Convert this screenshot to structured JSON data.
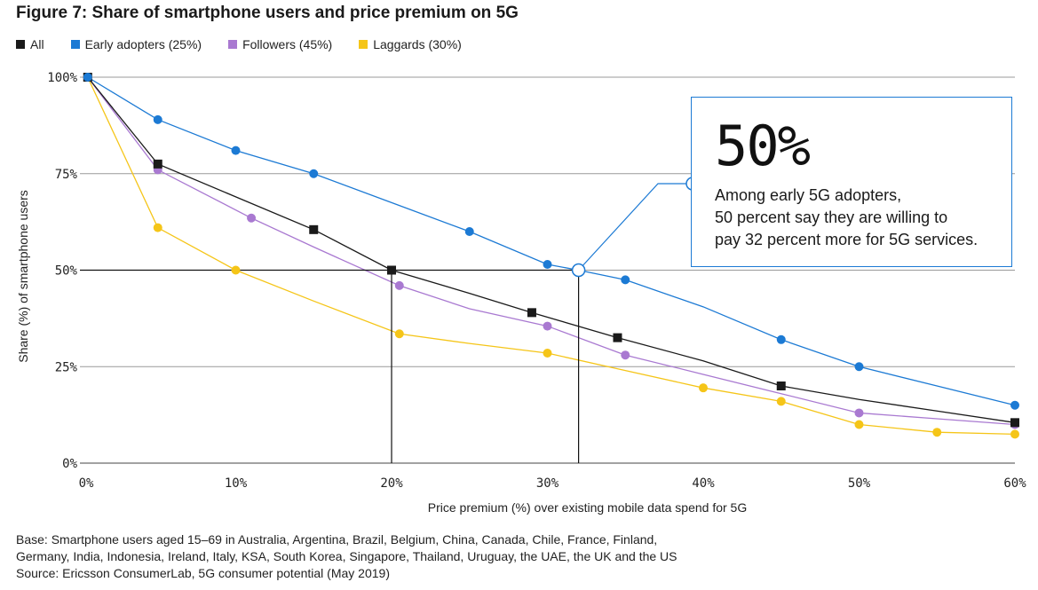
{
  "title": "Figure 7: Share of smartphone users and price premium on 5G",
  "legend": [
    {
      "label": "All",
      "color": "#1a1a1a"
    },
    {
      "label": "Early adopters (25%)",
      "color": "#1c7ad4"
    },
    {
      "label": "Followers (45%)",
      "color": "#a979d1"
    },
    {
      "label": "Laggards (30%)",
      "color": "#f5c518"
    }
  ],
  "callout": {
    "big": "50%",
    "line1": "Among early 5G adopters,",
    "line2": "50 percent say they are willing to",
    "line3": "pay 32 percent more for 5G services."
  },
  "footnote": {
    "line1": "Base: Smartphone users aged 15–69 in Australia, Argentina, Brazil, Belgium, China, Canada, Chile, France, Finland,",
    "line2": "Germany, India, Indonesia, Ireland, Italy, KSA, South Korea, Singapore, Thailand, Uruguay, the UAE, the UK and the US",
    "line3": "Source: Ericsson ConsumerLab, 5G consumer potential (May 2019)"
  },
  "chart_data": {
    "type": "line",
    "xlabel": "Price premium (%) over existing mobile data spend for 5G",
    "ylabel": "Share (%) of smartphone users",
    "xlim": [
      0,
      60
    ],
    "ylim": [
      0,
      100
    ],
    "x_ticks": [
      "0%",
      "10%",
      "20%",
      "30%",
      "40%",
      "50%",
      "60%"
    ],
    "y_ticks": [
      "0%",
      "25%",
      "50%",
      "75%",
      "100%"
    ],
    "grid": "horizontal",
    "legend_position": "top-left",
    "series": [
      {
        "name": "All",
        "color": "#1a1a1a",
        "marker": "square",
        "x": [
          0.5,
          5,
          15,
          20,
          29,
          34.5,
          45,
          60
        ],
        "y": [
          100,
          77.5,
          60.5,
          50,
          39,
          32.5,
          20,
          10.5
        ],
        "line_x": [
          0.5,
          5,
          10,
          15,
          20,
          25,
          29,
          34.5,
          40,
          45,
          50,
          55,
          60
        ],
        "line_y": [
          100,
          77.5,
          69,
          60.5,
          50,
          44,
          39,
          32.5,
          26.5,
          20,
          16.5,
          13.5,
          10.5
        ]
      },
      {
        "name": "Early adopters (25%)",
        "color": "#1c7ad4",
        "marker": "circle",
        "x": [
          0.5,
          5,
          10,
          15,
          25,
          30,
          35,
          45,
          50,
          60
        ],
        "y": [
          100,
          89,
          81,
          75,
          60,
          51.5,
          47.5,
          32,
          25,
          15
        ],
        "line_x": [
          0.5,
          5,
          10,
          15,
          20,
          25,
          30,
          32,
          35,
          40,
          45,
          50,
          55,
          60
        ],
        "line_y": [
          100,
          89,
          81,
          75,
          67.5,
          60,
          51.5,
          50,
          47.5,
          40.5,
          32,
          25,
          20,
          15
        ]
      },
      {
        "name": "Followers (45%)",
        "color": "#a979d1",
        "marker": "circle",
        "x": [
          0.5,
          5,
          11,
          20.5,
          30,
          35,
          50,
          60
        ],
        "y": [
          100,
          76,
          63.5,
          46,
          35.5,
          28,
          13,
          10
        ],
        "line_x": [
          0.5,
          5,
          11,
          15,
          20.5,
          25,
          30,
          35,
          40,
          45,
          50,
          55,
          60
        ],
        "line_y": [
          100,
          76,
          63.5,
          56,
          46,
          40,
          35.5,
          28,
          23,
          18,
          13,
          11.5,
          10
        ]
      },
      {
        "name": "Laggards (30%)",
        "color": "#f5c518",
        "marker": "circle",
        "x": [
          0.5,
          5,
          10,
          20.5,
          30,
          40,
          45,
          50,
          55,
          60
        ],
        "y": [
          100,
          61,
          50,
          33.5,
          28.5,
          19.5,
          16,
          10,
          8,
          7.5
        ],
        "line_x": [
          0.5,
          5,
          10,
          15,
          20.5,
          25,
          30,
          35,
          40,
          45,
          50,
          55,
          60
        ],
        "line_y": [
          100,
          61,
          50,
          42,
          33.5,
          31,
          28.5,
          24,
          19.5,
          16,
          10,
          8,
          7.5
        ]
      }
    ],
    "reference_lines": [
      {
        "type": "horizontal",
        "y": 50,
        "x_from": 0,
        "x_to": 32
      },
      {
        "type": "vertical",
        "x": 20,
        "y_from": 0,
        "y_to": 50
      },
      {
        "type": "vertical",
        "x": 32,
        "y_from": 0,
        "y_to": 50
      }
    ],
    "highlight_point": {
      "x": 32,
      "y": 50
    }
  }
}
